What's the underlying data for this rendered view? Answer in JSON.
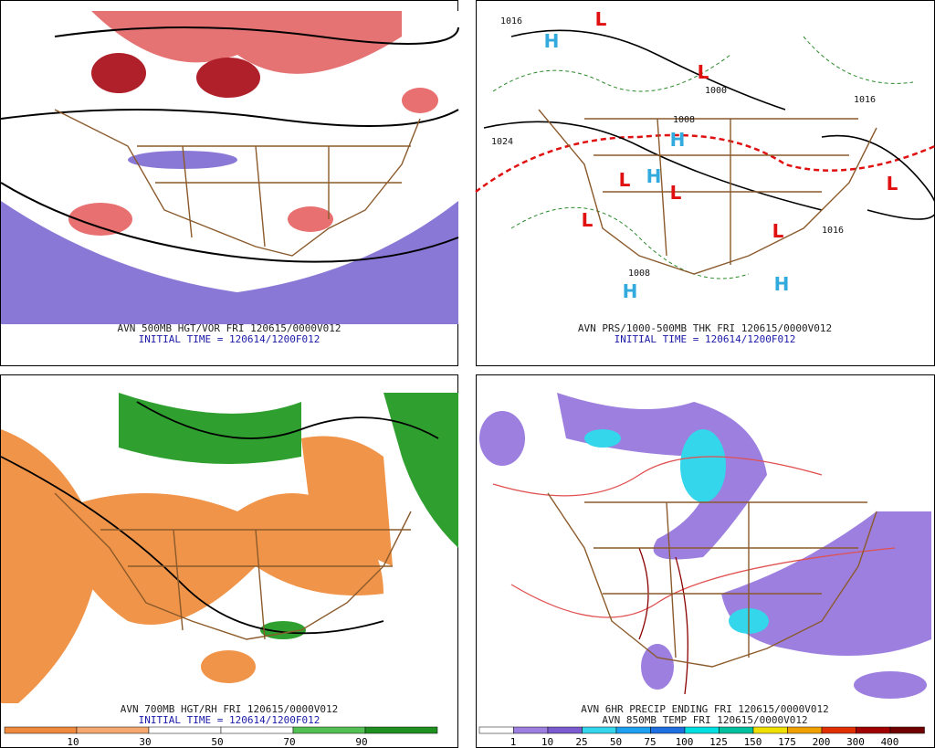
{
  "panels": [
    {
      "caption": "AVN 500MB HGT/VOR FRI 120615/0000V012",
      "initial": "INITIAL TIME = 120614/1200F012"
    },
    {
      "caption": "AVN PRS/1000-500MB THK FRI 120615/0000V012",
      "initial": "INITIAL TIME = 120614/1200F012",
      "centers": [
        "L",
        "L",
        "H",
        "H",
        "L",
        "H",
        "L",
        "L",
        "L",
        "H",
        "H",
        "L"
      ],
      "contour_labels": [
        "1016",
        "1000",
        "1008",
        "1024",
        "1016",
        "1008",
        "1016"
      ]
    },
    {
      "caption": "AVN 700MB HGT/RH FRI 120615/0000V012",
      "initial": "INITIAL TIME = 120614/1200F012",
      "scale_labels": [
        "10",
        "30",
        "50",
        "70",
        "90"
      ]
    },
    {
      "caption": "AVN 6HR PRECIP ENDING FRI 120615/0000V012",
      "initial": "AVN 850MB TEMP FRI 120615/0000V012",
      "scale_labels": [
        "1",
        "10",
        "25",
        "50",
        "75",
        "100",
        "125",
        "150",
        "175",
        "200",
        "300",
        "400"
      ]
    }
  ]
}
